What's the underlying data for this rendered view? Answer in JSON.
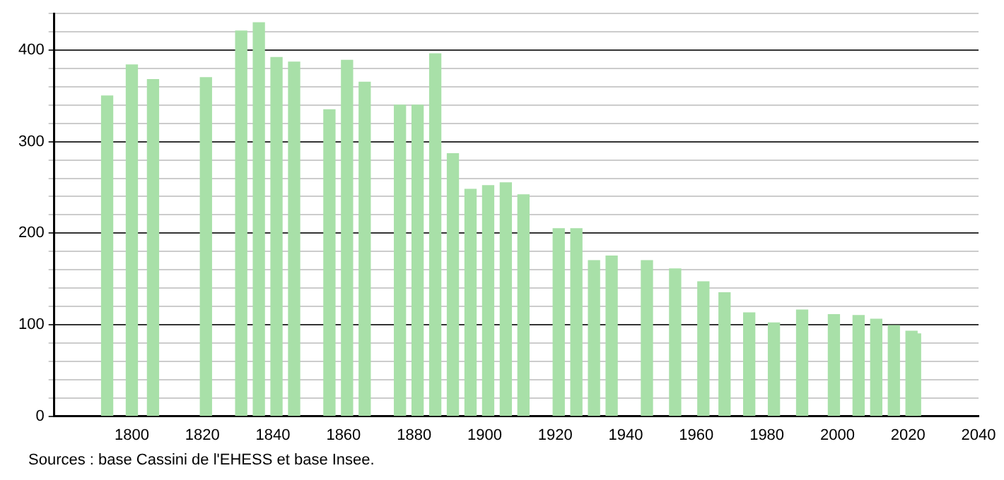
{
  "chart_data": {
    "type": "bar",
    "x": [
      1793,
      1800,
      1806,
      1821,
      1831,
      1836,
      1841,
      1846,
      1856,
      1861,
      1866,
      1876,
      1881,
      1886,
      1891,
      1896,
      1901,
      1906,
      1911,
      1921,
      1926,
      1931,
      1936,
      1946,
      1954,
      1962,
      1968,
      1975,
      1982,
      1990,
      1999,
      2006,
      2011,
      2016,
      2021,
      2022
    ],
    "values": [
      350,
      384,
      368,
      370,
      421,
      430,
      392,
      387,
      335,
      389,
      365,
      340,
      340,
      396,
      287,
      248,
      252,
      255,
      242,
      205,
      205,
      170,
      175,
      170,
      161,
      147,
      135,
      113,
      102,
      116,
      111,
      110,
      106,
      99,
      93,
      90
    ],
    "color": "#a8e0a8",
    "xlim": [
      1778,
      2040
    ],
    "xticks": [
      1800,
      1820,
      1840,
      1860,
      1880,
      1900,
      1920,
      1940,
      1960,
      1980,
      2000,
      2020,
      2040
    ],
    "ylim": [
      0,
      440
    ],
    "yticks": [
      0,
      {
        "value": 20,
        "label": null
      },
      {
        "value": 40,
        "label": null
      },
      {
        "value": 60,
        "label": null
      },
      {
        "value": 80,
        "label": null
      },
      100,
      {
        "value": 120,
        "label": null
      },
      {
        "value": 140,
        "label": null
      },
      {
        "value": 160,
        "label": null
      },
      {
        "value": 180,
        "label": null
      },
      200,
      {
        "value": 220,
        "label": null
      },
      {
        "value": 240,
        "label": null
      },
      {
        "value": 260,
        "label": null
      },
      {
        "value": 280,
        "label": null
      },
      300,
      {
        "value": 320,
        "label": null
      },
      {
        "value": 340,
        "label": null
      },
      {
        "value": 360,
        "label": null
      },
      {
        "value": 380,
        "label": null
      },
      400,
      {
        "value": 420,
        "label": null
      },
      {
        "value": 440,
        "label": null
      }
    ],
    "grid": "y",
    "legend": false,
    "annotations": [
      "Sources : base Cassini de l'EHESS et base Insee."
    ]
  }
}
